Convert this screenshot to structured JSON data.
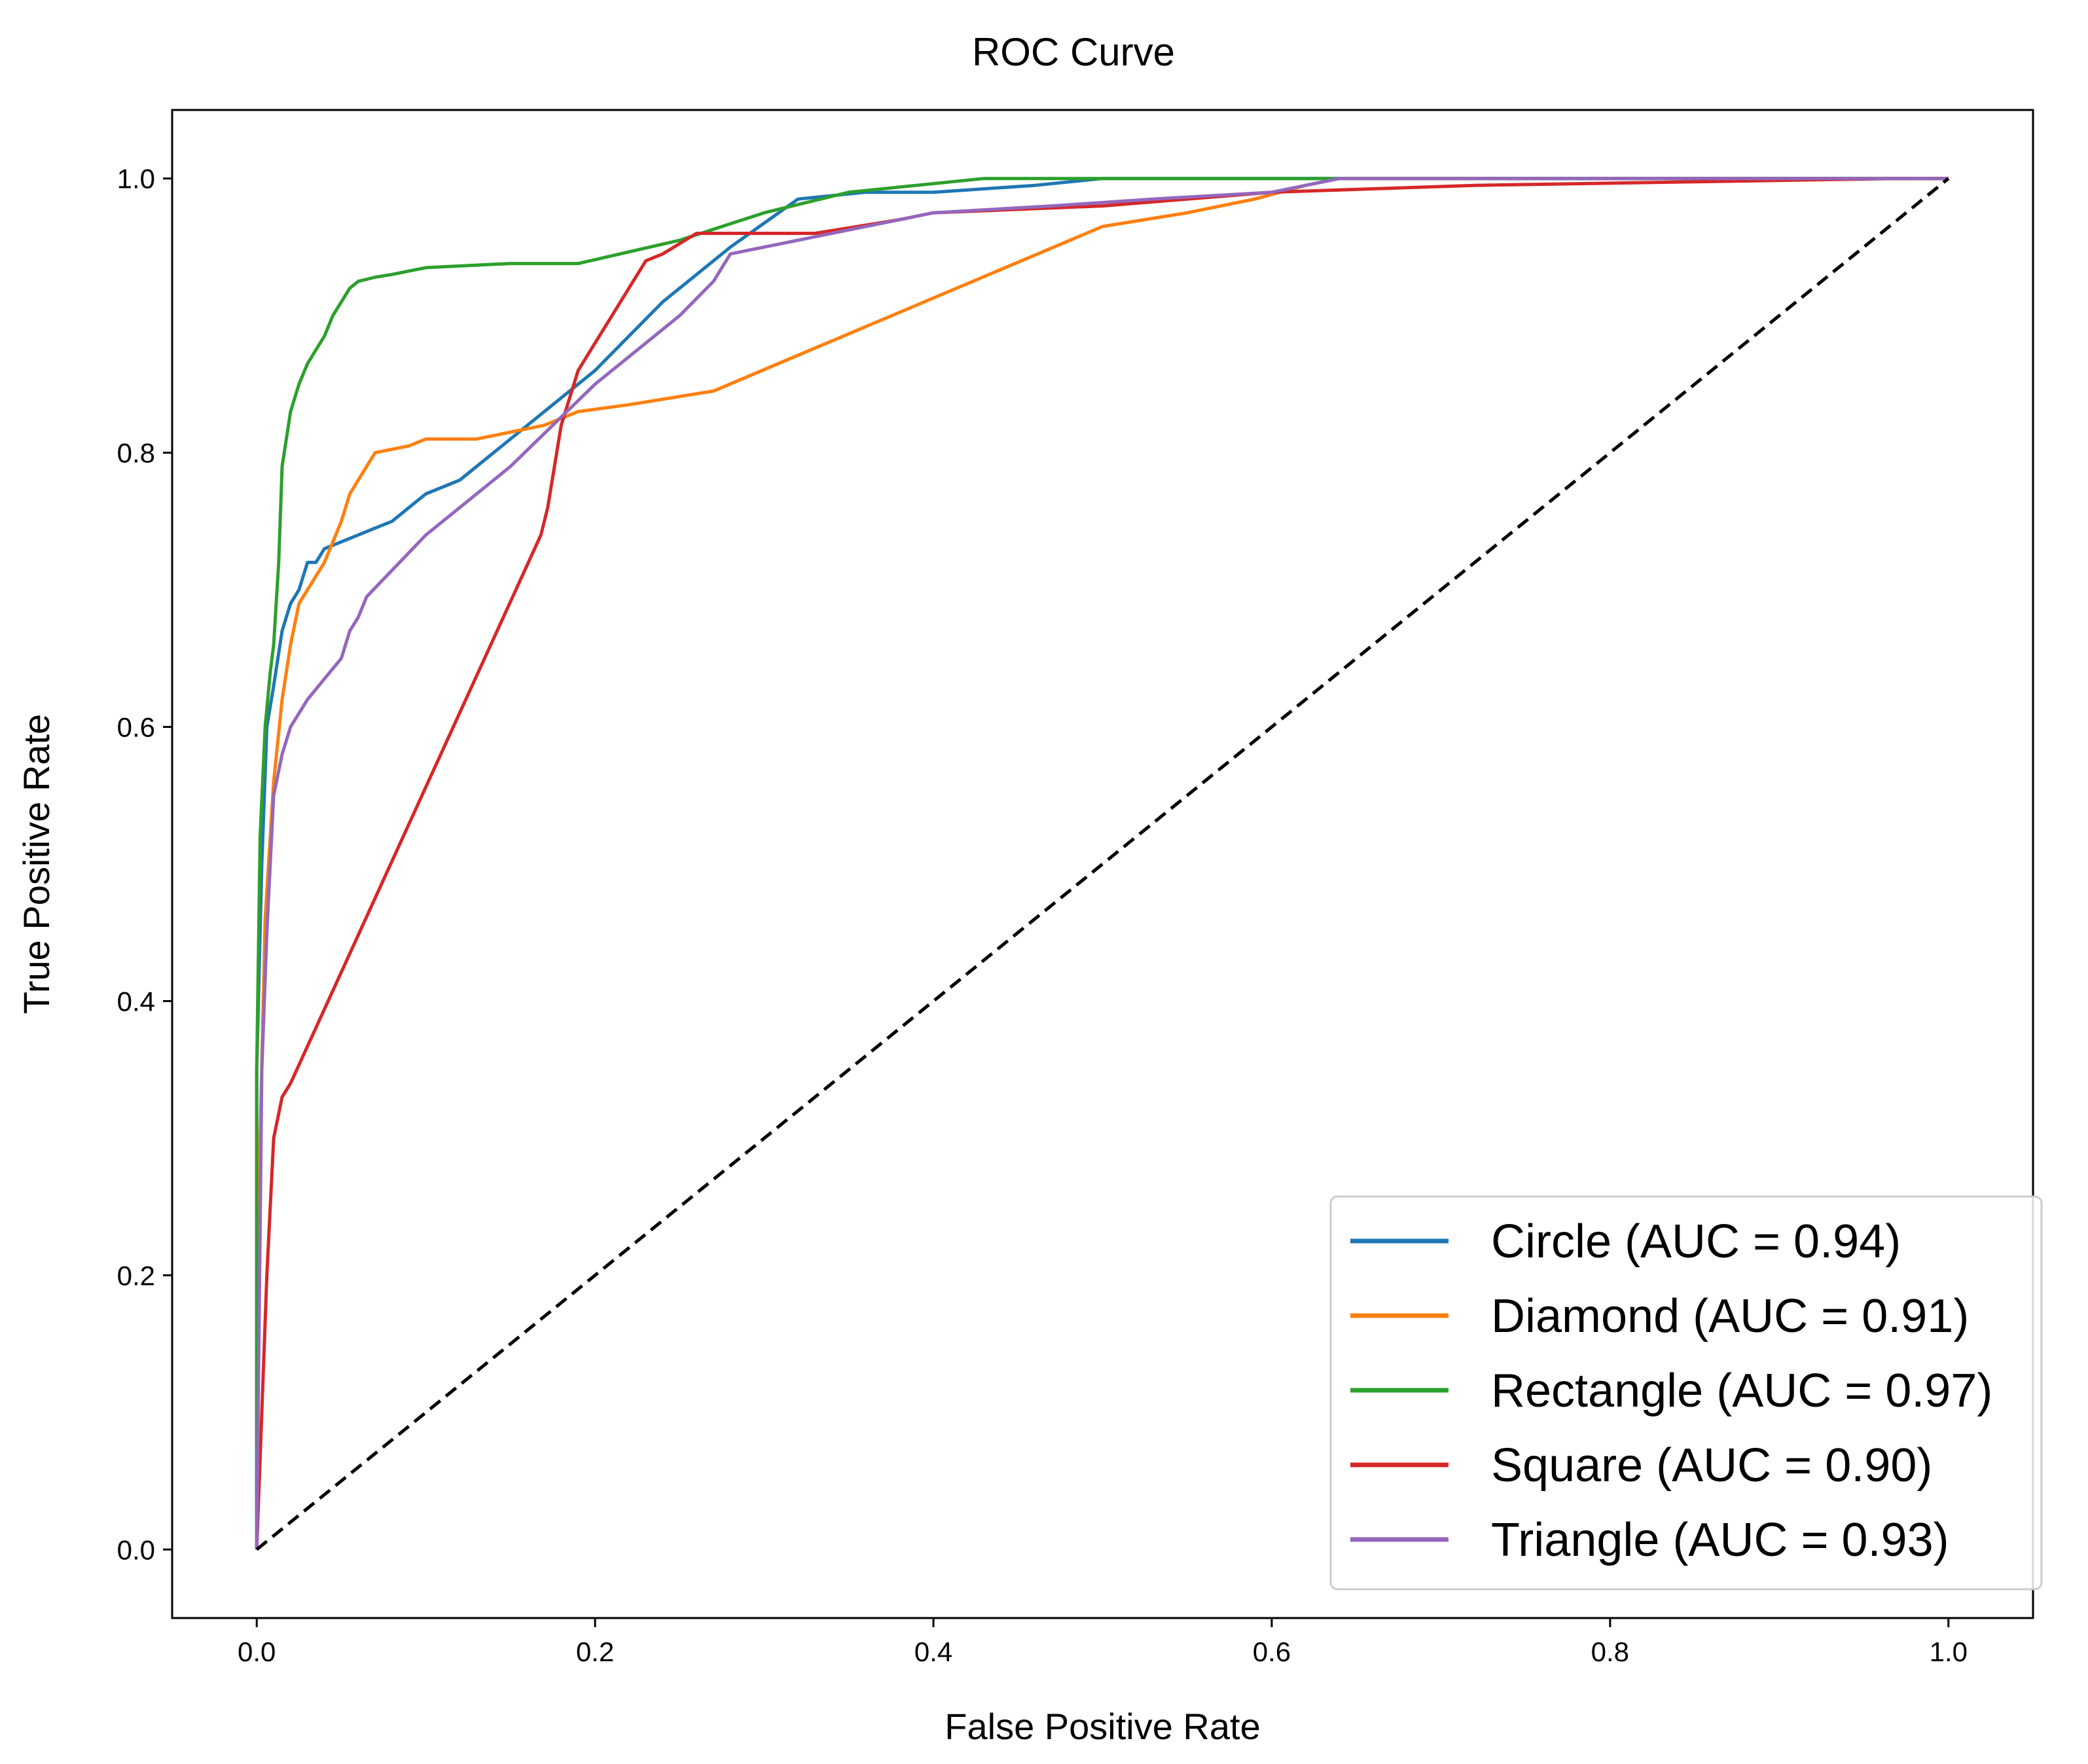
{
  "chart_data": {
    "type": "line",
    "title": "ROC Curve",
    "xlabel": "False Positive Rate",
    "ylabel": "True Positive Rate",
    "xlim": [
      -0.05,
      1.05
    ],
    "ylim": [
      -0.05,
      1.05
    ],
    "x_ticks": [
      0.0,
      0.2,
      0.4,
      0.6,
      0.8,
      1.0
    ],
    "y_ticks": [
      0.0,
      0.2,
      0.4,
      0.6,
      0.8,
      1.0
    ],
    "x_tick_labels": [
      "0.0",
      "0.2",
      "0.4",
      "0.6",
      "0.8",
      "1.0"
    ],
    "y_tick_labels": [
      "0.0",
      "0.2",
      "0.4",
      "0.6",
      "0.8",
      "1.0"
    ],
    "grid": false,
    "legend_position": "bottom-right",
    "series": [
      {
        "name": "Circle (AUC = 0.94)",
        "color": "#1f77b4",
        "x": [
          0.0,
          0.0,
          0.003,
          0.006,
          0.01,
          0.015,
          0.02,
          0.025,
          0.03,
          0.035,
          0.04,
          0.05,
          0.06,
          0.07,
          0.08,
          0.09,
          0.1,
          0.12,
          0.16,
          0.2,
          0.24,
          0.28,
          0.32,
          0.36,
          0.4,
          0.46,
          0.5,
          0.57,
          1.0
        ],
        "y": [
          0.0,
          0.35,
          0.5,
          0.6,
          0.63,
          0.67,
          0.69,
          0.7,
          0.72,
          0.72,
          0.73,
          0.735,
          0.74,
          0.745,
          0.75,
          0.76,
          0.77,
          0.78,
          0.82,
          0.86,
          0.91,
          0.95,
          0.985,
          0.99,
          0.99,
          0.995,
          1.0,
          1.0,
          1.0
        ]
      },
      {
        "name": "Diamond (AUC = 0.91)",
        "color": "#ff7f0e",
        "x": [
          0.0,
          0.002,
          0.005,
          0.01,
          0.015,
          0.02,
          0.025,
          0.03,
          0.04,
          0.05,
          0.055,
          0.06,
          0.07,
          0.09,
          0.1,
          0.13,
          0.17,
          0.19,
          0.22,
          0.27,
          0.5,
          0.55,
          0.59,
          0.62,
          0.64,
          1.0
        ],
        "y": [
          0.0,
          0.3,
          0.46,
          0.56,
          0.62,
          0.66,
          0.69,
          0.7,
          0.72,
          0.75,
          0.77,
          0.78,
          0.8,
          0.805,
          0.81,
          0.81,
          0.82,
          0.83,
          0.835,
          0.845,
          0.965,
          0.975,
          0.985,
          0.995,
          1.0,
          1.0
        ]
      },
      {
        "name": "Rectangle (AUC = 0.97)",
        "color": "#2ca02c",
        "x": [
          0.0,
          0.0,
          0.002,
          0.005,
          0.008,
          0.01,
          0.013,
          0.015,
          0.02,
          0.025,
          0.03,
          0.035,
          0.04,
          0.045,
          0.05,
          0.055,
          0.06,
          0.07,
          0.08,
          0.1,
          0.15,
          0.19,
          0.25,
          0.3,
          0.35,
          0.43,
          0.6,
          0.65,
          1.0
        ],
        "y": [
          0.0,
          0.35,
          0.52,
          0.6,
          0.64,
          0.66,
          0.72,
          0.79,
          0.83,
          0.85,
          0.865,
          0.875,
          0.885,
          0.9,
          0.91,
          0.92,
          0.925,
          0.928,
          0.93,
          0.935,
          0.938,
          0.938,
          0.955,
          0.975,
          0.99,
          1.0,
          1.0,
          1.0,
          1.0
        ]
      },
      {
        "name": "Square (AUC = 0.90)",
        "color": "#d62728",
        "x": [
          0.0,
          0.003,
          0.006,
          0.01,
          0.015,
          0.02,
          0.168,
          0.172,
          0.18,
          0.19,
          0.2,
          0.21,
          0.22,
          0.23,
          0.24,
          0.26,
          0.33,
          0.38,
          0.4,
          0.5,
          0.6,
          0.72,
          0.97,
          1.0
        ],
        "y": [
          0.0,
          0.1,
          0.2,
          0.3,
          0.33,
          0.34,
          0.74,
          0.76,
          0.82,
          0.86,
          0.88,
          0.9,
          0.92,
          0.94,
          0.945,
          0.96,
          0.96,
          0.97,
          0.975,
          0.98,
          0.99,
          0.995,
          1.0,
          1.0
        ]
      },
      {
        "name": "Triangle (AUC = 0.93)",
        "color": "#9467bd",
        "x": [
          0.0,
          0.003,
          0.006,
          0.01,
          0.015,
          0.02,
          0.03,
          0.04,
          0.05,
          0.055,
          0.06,
          0.065,
          0.1,
          0.15,
          0.2,
          0.25,
          0.27,
          0.28,
          0.32,
          0.36,
          0.4,
          0.47,
          0.53,
          0.6,
          0.64,
          1.0
        ],
        "y": [
          0.0,
          0.35,
          0.45,
          0.55,
          0.58,
          0.6,
          0.62,
          0.635,
          0.65,
          0.67,
          0.68,
          0.695,
          0.74,
          0.79,
          0.85,
          0.9,
          0.925,
          0.945,
          0.955,
          0.965,
          0.975,
          0.98,
          0.985,
          0.99,
          1.0,
          1.0
        ]
      }
    ],
    "reference_line": {
      "x": [
        0.0,
        1.0
      ],
      "y": [
        0.0,
        1.0
      ],
      "color": "#000000",
      "style": "dashed"
    }
  }
}
